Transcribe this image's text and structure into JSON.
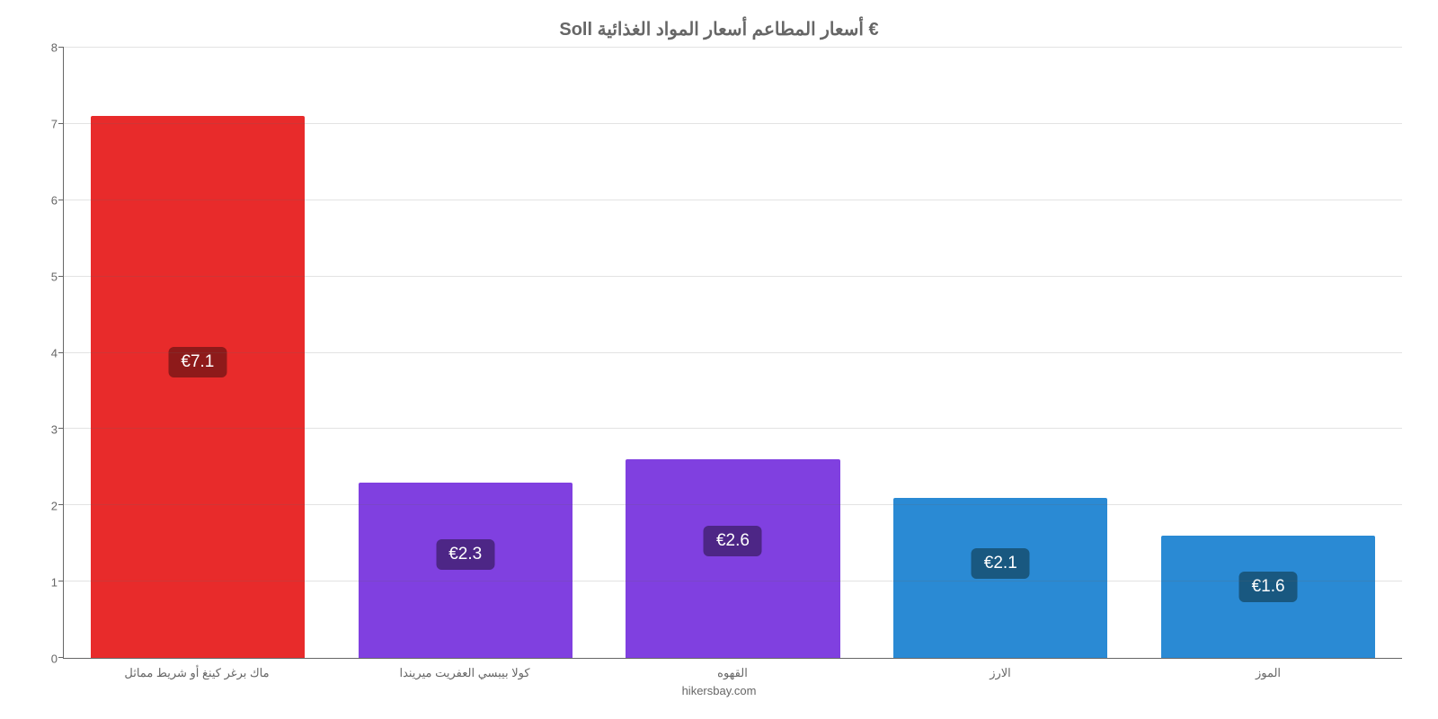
{
  "chart": {
    "type": "bar",
    "title": "‏Soll أسعار المطاعم أسعار المواد الغذائية €",
    "title_fontsize": 20,
    "title_color": "#666666",
    "attribution": "hikersbay.com",
    "background_color": "#ffffff",
    "axis_color": "#666666",
    "grid_color": "#666666",
    "label_fontsize": 13,
    "label_color": "#666666",
    "ylim": [
      0,
      8
    ],
    "ytick_step": 1,
    "yticks": [
      0,
      1,
      2,
      3,
      4,
      5,
      6,
      7,
      8
    ],
    "bar_width_pct": 80,
    "badge_fontsize": 19,
    "categories": [
      "ماك برغر كينغ أو شريط مماثل",
      "كولا بيبسي العفريت ميريندا",
      "القهوه",
      "الارز",
      "الموز"
    ],
    "values": [
      7.1,
      2.3,
      2.6,
      2.1,
      1.6
    ],
    "value_labels": [
      "€7.1",
      "€2.3",
      "€2.6",
      "€2.1",
      "€1.6"
    ],
    "bar_colors": [
      "#e82b2b",
      "#8040e0",
      "#8040e0",
      "#2a8ad4",
      "#2a8ad4"
    ],
    "badge_bg_colors": [
      "#8e1a1a",
      "#4d2686",
      "#4d2686",
      "#195880",
      "#195880"
    ],
    "badge_text_color": "#ffffff",
    "badge_offsets": [
      0.55,
      0.6,
      0.6,
      0.6,
      0.6
    ]
  }
}
